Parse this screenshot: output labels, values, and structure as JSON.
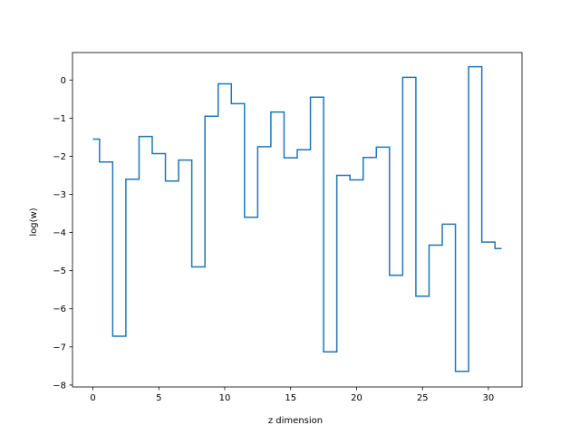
{
  "chart_data": {
    "type": "line",
    "drawstyle": "steps-mid",
    "title": "",
    "xlabel": "z dimension",
    "ylabel": "log(w)",
    "xlim": [
      -1.55,
      32.55
    ],
    "ylim": [
      -8.05,
      0.72
    ],
    "xticks": [
      0,
      5,
      10,
      15,
      20,
      25,
      30
    ],
    "yticks": [
      0,
      -1,
      -2,
      -3,
      -4,
      -5,
      -6,
      -7,
      -8
    ],
    "grid": false,
    "legend": "none",
    "line_color": "#1f77b4",
    "series": [
      {
        "x": [
          0,
          1,
          2,
          3,
          4,
          5,
          6,
          7,
          8,
          9,
          10,
          11,
          12,
          13,
          14,
          15,
          16,
          17,
          18,
          19,
          20,
          21,
          22,
          23,
          24,
          25,
          26,
          27,
          28,
          29,
          30,
          31
        ],
        "values": [
          -1.55,
          -2.15,
          -6.72,
          -2.6,
          -1.48,
          -1.93,
          -2.65,
          -2.1,
          -4.9,
          -0.95,
          -0.1,
          -0.62,
          -3.6,
          -1.75,
          -0.84,
          -2.04,
          -1.83,
          -0.45,
          -7.13,
          -2.5,
          -2.62,
          -2.03,
          -1.76,
          -5.12,
          0.07,
          -5.67,
          -4.33,
          -3.78,
          -7.64,
          0.35,
          -4.25,
          -4.42
        ]
      }
    ]
  }
}
